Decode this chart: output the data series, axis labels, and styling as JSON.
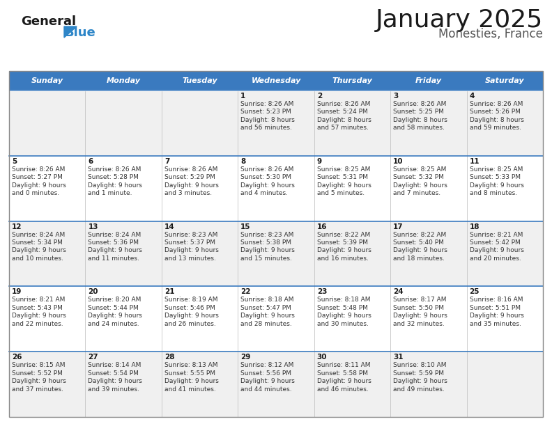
{
  "title": "January 2025",
  "subtitle": "Monesties, France",
  "header_bg": "#3a7abf",
  "header_text": "#ffffff",
  "row_bg_odd": "#f0f0f0",
  "row_bg_even": "#ffffff",
  "divider_color": "#3a7abf",
  "cell_border_color": "#cccccc",
  "days_of_week": [
    "Sunday",
    "Monday",
    "Tuesday",
    "Wednesday",
    "Thursday",
    "Friday",
    "Saturday"
  ],
  "calendar_data": [
    [
      "",
      "",
      "",
      "1\nSunrise: 8:26 AM\nSunset: 5:23 PM\nDaylight: 8 hours\nand 56 minutes.",
      "2\nSunrise: 8:26 AM\nSunset: 5:24 PM\nDaylight: 8 hours\nand 57 minutes.",
      "3\nSunrise: 8:26 AM\nSunset: 5:25 PM\nDaylight: 8 hours\nand 58 minutes.",
      "4\nSunrise: 8:26 AM\nSunset: 5:26 PM\nDaylight: 8 hours\nand 59 minutes."
    ],
    [
      "5\nSunrise: 8:26 AM\nSunset: 5:27 PM\nDaylight: 9 hours\nand 0 minutes.",
      "6\nSunrise: 8:26 AM\nSunset: 5:28 PM\nDaylight: 9 hours\nand 1 minute.",
      "7\nSunrise: 8:26 AM\nSunset: 5:29 PM\nDaylight: 9 hours\nand 3 minutes.",
      "8\nSunrise: 8:26 AM\nSunset: 5:30 PM\nDaylight: 9 hours\nand 4 minutes.",
      "9\nSunrise: 8:25 AM\nSunset: 5:31 PM\nDaylight: 9 hours\nand 5 minutes.",
      "10\nSunrise: 8:25 AM\nSunset: 5:32 PM\nDaylight: 9 hours\nand 7 minutes.",
      "11\nSunrise: 8:25 AM\nSunset: 5:33 PM\nDaylight: 9 hours\nand 8 minutes."
    ],
    [
      "12\nSunrise: 8:24 AM\nSunset: 5:34 PM\nDaylight: 9 hours\nand 10 minutes.",
      "13\nSunrise: 8:24 AM\nSunset: 5:36 PM\nDaylight: 9 hours\nand 11 minutes.",
      "14\nSunrise: 8:23 AM\nSunset: 5:37 PM\nDaylight: 9 hours\nand 13 minutes.",
      "15\nSunrise: 8:23 AM\nSunset: 5:38 PM\nDaylight: 9 hours\nand 15 minutes.",
      "16\nSunrise: 8:22 AM\nSunset: 5:39 PM\nDaylight: 9 hours\nand 16 minutes.",
      "17\nSunrise: 8:22 AM\nSunset: 5:40 PM\nDaylight: 9 hours\nand 18 minutes.",
      "18\nSunrise: 8:21 AM\nSunset: 5:42 PM\nDaylight: 9 hours\nand 20 minutes."
    ],
    [
      "19\nSunrise: 8:21 AM\nSunset: 5:43 PM\nDaylight: 9 hours\nand 22 minutes.",
      "20\nSunrise: 8:20 AM\nSunset: 5:44 PM\nDaylight: 9 hours\nand 24 minutes.",
      "21\nSunrise: 8:19 AM\nSunset: 5:46 PM\nDaylight: 9 hours\nand 26 minutes.",
      "22\nSunrise: 8:18 AM\nSunset: 5:47 PM\nDaylight: 9 hours\nand 28 minutes.",
      "23\nSunrise: 8:18 AM\nSunset: 5:48 PM\nDaylight: 9 hours\nand 30 minutes.",
      "24\nSunrise: 8:17 AM\nSunset: 5:50 PM\nDaylight: 9 hours\nand 32 minutes.",
      "25\nSunrise: 8:16 AM\nSunset: 5:51 PM\nDaylight: 9 hours\nand 35 minutes."
    ],
    [
      "26\nSunrise: 8:15 AM\nSunset: 5:52 PM\nDaylight: 9 hours\nand 37 minutes.",
      "27\nSunrise: 8:14 AM\nSunset: 5:54 PM\nDaylight: 9 hours\nand 39 minutes.",
      "28\nSunrise: 8:13 AM\nSunset: 5:55 PM\nDaylight: 9 hours\nand 41 minutes.",
      "29\nSunrise: 8:12 AM\nSunset: 5:56 PM\nDaylight: 9 hours\nand 44 minutes.",
      "30\nSunrise: 8:11 AM\nSunset: 5:58 PM\nDaylight: 9 hours\nand 46 minutes.",
      "31\nSunrise: 8:10 AM\nSunset: 5:59 PM\nDaylight: 9 hours\nand 49 minutes.",
      ""
    ]
  ],
  "logo_text_general": "General",
  "logo_text_blue": "Blue",
  "logo_color_general": "#1a1a1a",
  "logo_color_blue": "#2e86c8",
  "logo_triangle_color": "#2e86c8",
  "title_fontsize": 26,
  "subtitle_fontsize": 12,
  "dow_fontsize": 8,
  "daynum_fontsize": 7.5,
  "cell_fontsize": 6.5
}
